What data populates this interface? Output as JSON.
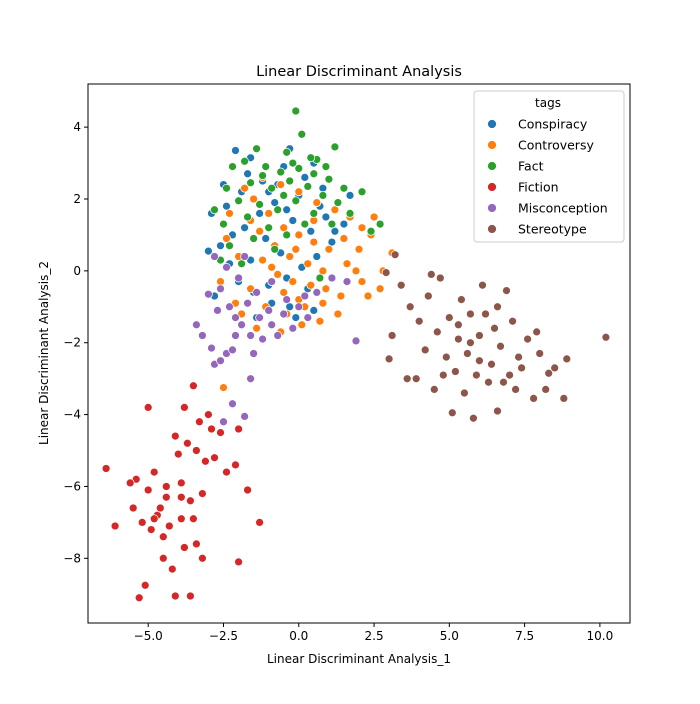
{
  "chart_data": {
    "type": "scatter",
    "title": "Linear Discriminant Analysis",
    "xlabel": "Linear Discriminant Analysis_1",
    "ylabel": "Linear Discriminant Analysis_2",
    "xlim": [
      -7.0,
      11.0
    ],
    "ylim": [
      -9.8,
      5.2
    ],
    "xticks": [
      -5.0,
      -2.5,
      0.0,
      2.5,
      5.0,
      7.5,
      10.0
    ],
    "xtick_labels": [
      "−5.0",
      "−2.5",
      "0.0",
      "2.5",
      "5.0",
      "7.5",
      "10.0"
    ],
    "yticks": [
      -8,
      -6,
      -4,
      -2,
      0,
      2,
      4
    ],
    "ytick_labels": [
      "−8",
      "−6",
      "−4",
      "−2",
      "0",
      "2",
      "4"
    ],
    "grid": false,
    "legend": {
      "title": "tags",
      "position": "top-right"
    },
    "series": [
      {
        "name": "Conspiracy",
        "color": "#1f77b4",
        "points": [
          [
            -2.1,
            3.35
          ],
          [
            -1.6,
            3.15
          ],
          [
            -0.3,
            3.4
          ],
          [
            0.5,
            3.0
          ],
          [
            -2.9,
            1.6
          ],
          [
            -3.0,
            0.55
          ],
          [
            -2.4,
            1.8
          ],
          [
            -1.9,
            2.2
          ],
          [
            -1.2,
            2.5
          ],
          [
            -0.5,
            2.9
          ],
          [
            0.2,
            2.6
          ],
          [
            0.8,
            2.3
          ],
          [
            1.3,
            1.9
          ],
          [
            1.7,
            2.1
          ],
          [
            1.5,
            1.3
          ],
          [
            1.1,
            0.8
          ],
          [
            0.6,
            0.4
          ],
          [
            0.1,
            0.1
          ],
          [
            -0.4,
            -0.2
          ],
          [
            -1.0,
            -0.4
          ],
          [
            -1.5,
            -0.6
          ],
          [
            -2.0,
            -0.3
          ],
          [
            -2.3,
            0.2
          ],
          [
            -2.6,
            0.7
          ],
          [
            -1.8,
            1.2
          ],
          [
            -1.3,
            1.6
          ],
          [
            -0.8,
            1.9
          ],
          [
            -0.2,
            1.4
          ],
          [
            0.4,
            1.1
          ],
          [
            0.9,
            1.5
          ],
          [
            -1.1,
            0.9
          ],
          [
            -0.6,
            0.5
          ],
          [
            -1.6,
            0.3
          ],
          [
            -2.2,
            1.0
          ],
          [
            -0.9,
            -0.9
          ],
          [
            -1.4,
            -1.3
          ],
          [
            -0.3,
            -1.0
          ],
          [
            0.3,
            -0.5
          ],
          [
            -1.9,
            -1.5
          ],
          [
            -0.7,
            2.4
          ],
          [
            0.0,
            2.1
          ],
          [
            0.7,
            1.8
          ],
          [
            -1.7,
            2.7
          ],
          [
            -2.5,
            2.4
          ],
          [
            1.2,
            1.1
          ],
          [
            -0.1,
            -1.3
          ],
          [
            0.5,
            -1.1
          ],
          [
            -2.8,
            -0.7
          ],
          [
            -1.0,
            2.2
          ],
          [
            -0.4,
            1.7
          ]
        ]
      },
      {
        "name": "Controversy",
        "color": "#ff7f0e",
        "points": [
          [
            -1.5,
            2.0
          ],
          [
            -1.0,
            1.6
          ],
          [
            -0.5,
            1.2
          ],
          [
            0.0,
            1.0
          ],
          [
            0.5,
            0.8
          ],
          [
            1.0,
            0.6
          ],
          [
            -0.8,
            0.7
          ],
          [
            -0.3,
            0.4
          ],
          [
            0.3,
            0.2
          ],
          [
            0.8,
            0.0
          ],
          [
            -1.2,
            0.3
          ],
          [
            -0.7,
            -0.1
          ],
          [
            -0.2,
            -0.3
          ],
          [
            0.4,
            -0.4
          ],
          [
            1.1,
            -0.2
          ],
          [
            1.6,
            0.2
          ],
          [
            2.0,
            0.6
          ],
          [
            2.4,
            1.0
          ],
          [
            2.1,
            -0.3
          ],
          [
            1.4,
            -0.7
          ],
          [
            0.8,
            -0.9
          ],
          [
            0.2,
            -1.0
          ],
          [
            -0.4,
            -1.2
          ],
          [
            -1.1,
            -1.0
          ],
          [
            -1.6,
            -0.5
          ],
          [
            -2.0,
            0.4
          ],
          [
            -2.4,
            0.9
          ],
          [
            -2.1,
            -0.9
          ],
          [
            -1.4,
            -1.6
          ],
          [
            -0.6,
            -1.7
          ],
          [
            0.1,
            -1.5
          ],
          [
            0.7,
            -1.4
          ],
          [
            1.3,
            -1.2
          ],
          [
            2.3,
            -0.7
          ],
          [
            2.8,
            0.0
          ],
          [
            3.1,
            0.5
          ],
          [
            2.5,
            1.5
          ],
          [
            2.1,
            1.2
          ],
          [
            1.7,
            1.5
          ],
          [
            1.2,
            1.7
          ],
          [
            0.6,
            1.9
          ],
          [
            0.0,
            2.2
          ],
          [
            -0.6,
            2.4
          ],
          [
            -1.2,
            2.6
          ],
          [
            -1.8,
            2.3
          ],
          [
            -2.3,
            1.6
          ],
          [
            -2.6,
            -0.3
          ],
          [
            -2.5,
            -3.25
          ],
          [
            -0.9,
            0.1
          ],
          [
            -0.1,
            0.6
          ],
          [
            0.5,
            1.4
          ],
          [
            1.5,
            0.9
          ],
          [
            -1.3,
            1.1
          ],
          [
            0.9,
            -0.5
          ],
          [
            -0.5,
            -0.6
          ],
          [
            1.9,
            0.0
          ],
          [
            2.7,
            -0.5
          ],
          [
            -1.9,
            -1.2
          ],
          [
            0.0,
            -0.8
          ],
          [
            -1.6,
            1.4
          ]
        ]
      },
      {
        "name": "Fact",
        "color": "#2ca02c",
        "points": [
          [
            -0.1,
            4.45
          ],
          [
            0.1,
            3.8
          ],
          [
            -0.4,
            3.3
          ],
          [
            0.6,
            3.1
          ],
          [
            -1.4,
            3.4
          ],
          [
            1.2,
            3.45
          ],
          [
            -2.2,
            2.9
          ],
          [
            -1.8,
            3.05
          ],
          [
            -1.1,
            2.9
          ],
          [
            -0.6,
            2.75
          ],
          [
            0.0,
            2.85
          ],
          [
            0.5,
            2.7
          ],
          [
            1.0,
            2.55
          ],
          [
            1.5,
            2.3
          ],
          [
            2.1,
            2.2
          ],
          [
            -2.4,
            2.3
          ],
          [
            -1.6,
            2.45
          ],
          [
            -0.9,
            2.3
          ],
          [
            -0.3,
            2.5
          ],
          [
            0.3,
            2.35
          ],
          [
            0.8,
            2.1
          ],
          [
            1.3,
            1.9
          ],
          [
            -2.0,
            1.95
          ],
          [
            -1.3,
            1.85
          ],
          [
            -0.7,
            1.7
          ],
          [
            -0.1,
            1.95
          ],
          [
            0.5,
            1.6
          ],
          [
            1.1,
            1.3
          ],
          [
            -2.5,
            1.3
          ],
          [
            -1.7,
            1.5
          ],
          [
            -1.0,
            1.2
          ],
          [
            -0.4,
            1.0
          ],
          [
            0.2,
            1.3
          ],
          [
            -2.3,
            0.7
          ],
          [
            -1.5,
            0.9
          ],
          [
            -0.8,
            0.6
          ],
          [
            -2.6,
            0.3
          ],
          [
            -0.2,
            3.0
          ],
          [
            0.9,
            2.9
          ],
          [
            -1.2,
            2.65
          ],
          [
            1.7,
            1.6
          ],
          [
            2.4,
            1.1
          ],
          [
            2.7,
            1.3
          ],
          [
            -0.5,
            2.1
          ],
          [
            0.4,
            3.15
          ],
          [
            -2.8,
            1.7
          ],
          [
            -1.9,
            0.2
          ],
          [
            0.7,
            -0.2
          ]
        ]
      },
      {
        "name": "Fiction",
        "color": "#d62728",
        "points": [
          [
            -6.4,
            -5.5
          ],
          [
            -6.1,
            -7.1
          ],
          [
            -5.5,
            -6.6
          ],
          [
            -5.4,
            -5.8
          ],
          [
            -5.3,
            -9.1
          ],
          [
            -5.1,
            -8.75
          ],
          [
            -5.0,
            -3.8
          ],
          [
            -5.0,
            -6.1
          ],
          [
            -4.9,
            -7.2
          ],
          [
            -4.8,
            -5.6
          ],
          [
            -4.7,
            -6.8
          ],
          [
            -4.6,
            -6.6
          ],
          [
            -4.5,
            -8.0
          ],
          [
            -4.4,
            -6.0
          ],
          [
            -4.3,
            -7.1
          ],
          [
            -4.2,
            -8.3
          ],
          [
            -4.1,
            -4.6
          ],
          [
            -4.0,
            -5.1
          ],
          [
            -3.9,
            -5.9
          ],
          [
            -3.9,
            -6.9
          ],
          [
            -3.8,
            -3.8
          ],
          [
            -3.8,
            -7.7
          ],
          [
            -3.7,
            -4.8
          ],
          [
            -3.6,
            -6.4
          ],
          [
            -3.5,
            -6.9
          ],
          [
            -3.4,
            -7.6
          ],
          [
            -3.4,
            -5.0
          ],
          [
            -3.3,
            -4.2
          ],
          [
            -3.2,
            -6.2
          ],
          [
            -3.2,
            -8.0
          ],
          [
            -3.0,
            -4.0
          ],
          [
            -2.8,
            -5.2
          ],
          [
            -2.6,
            -4.5
          ],
          [
            -2.4,
            -5.6
          ],
          [
            -2.1,
            -5.4
          ],
          [
            -2.0,
            -4.4
          ],
          [
            -1.7,
            -6.1
          ],
          [
            -2.0,
            -8.1
          ],
          [
            -1.3,
            -7.0
          ],
          [
            -3.5,
            -3.2
          ],
          [
            -4.1,
            -9.05
          ],
          [
            -3.6,
            -9.05
          ],
          [
            -5.2,
            -7.0
          ],
          [
            -4.4,
            -6.3
          ],
          [
            -5.6,
            -5.9
          ],
          [
            -3.9,
            -6.3
          ],
          [
            -4.8,
            -6.9
          ],
          [
            -2.9,
            -4.4
          ],
          [
            -3.1,
            -5.3
          ],
          [
            -4.5,
            -7.4
          ]
        ]
      },
      {
        "name": "Misconception",
        "color": "#9467bd",
        "points": [
          [
            -2.9,
            -2.15
          ],
          [
            -2.8,
            -2.6
          ],
          [
            -2.6,
            -2.5
          ],
          [
            -2.4,
            -2.3
          ],
          [
            -2.2,
            -2.2
          ],
          [
            -2.1,
            -1.8
          ],
          [
            -1.9,
            -1.5
          ],
          [
            -1.6,
            -1.8
          ],
          [
            -1.3,
            -1.3
          ],
          [
            -1.2,
            -1.9
          ],
          [
            -0.9,
            -1.5
          ],
          [
            -0.7,
            -1.8
          ],
          [
            -0.5,
            -1.2
          ],
          [
            -0.2,
            -1.6
          ],
          [
            0.0,
            -1.0
          ],
          [
            0.2,
            -0.7
          ],
          [
            0.6,
            -0.6
          ],
          [
            1.1,
            -0.2
          ],
          [
            1.6,
            -0.3
          ],
          [
            -2.0,
            -0.2
          ],
          [
            -1.8,
            0.4
          ],
          [
            -2.4,
            0.1
          ],
          [
            -2.6,
            -0.5
          ],
          [
            -2.3,
            -1.0
          ],
          [
            -1.4,
            -0.6
          ],
          [
            -0.9,
            -0.3
          ],
          [
            -2.7,
            -1.1
          ],
          [
            -3.0,
            -0.65
          ],
          [
            -1.6,
            -3.0
          ],
          [
            -1.5,
            -2.3
          ],
          [
            -3.4,
            -1.5
          ],
          [
            -3.2,
            -1.8
          ],
          [
            -2.5,
            -4.2
          ],
          [
            -1.8,
            -4.05
          ],
          [
            -2.2,
            -3.7
          ],
          [
            1.9,
            -1.95
          ],
          [
            0.3,
            -1.3
          ],
          [
            -0.4,
            -0.8
          ],
          [
            -1.0,
            -1.1
          ],
          [
            -2.1,
            -1.3
          ],
          [
            -1.7,
            -0.9
          ],
          [
            -2.8,
            0.4
          ]
        ]
      },
      {
        "name": "Stereotype",
        "color": "#8c564b",
        "points": [
          [
            10.2,
            -1.85
          ],
          [
            8.9,
            -2.45
          ],
          [
            8.8,
            -3.55
          ],
          [
            8.3,
            -2.85
          ],
          [
            8.2,
            -3.3
          ],
          [
            8.0,
            -2.3
          ],
          [
            7.8,
            -3.55
          ],
          [
            7.6,
            -1.9
          ],
          [
            7.3,
            -2.4
          ],
          [
            7.1,
            -1.4
          ],
          [
            7.0,
            -2.9
          ],
          [
            6.9,
            -0.55
          ],
          [
            6.8,
            -3.1
          ],
          [
            6.6,
            -3.9
          ],
          [
            6.5,
            -1.6
          ],
          [
            6.4,
            -2.6
          ],
          [
            6.3,
            -3.1
          ],
          [
            6.1,
            -0.4
          ],
          [
            6.0,
            -1.8
          ],
          [
            5.9,
            -2.9
          ],
          [
            5.8,
            -4.1
          ],
          [
            5.7,
            -1.2
          ],
          [
            5.6,
            -2.3
          ],
          [
            5.5,
            -3.4
          ],
          [
            5.4,
            -0.8
          ],
          [
            5.3,
            -1.9
          ],
          [
            5.2,
            -2.8
          ],
          [
            5.1,
            -3.95
          ],
          [
            5.0,
            -1.3
          ],
          [
            4.9,
            -2.4
          ],
          [
            4.7,
            -0.2
          ],
          [
            4.6,
            -1.7
          ],
          [
            4.5,
            -3.3
          ],
          [
            4.3,
            -0.7
          ],
          [
            4.2,
            -2.2
          ],
          [
            4.0,
            -1.4
          ],
          [
            3.9,
            -3.0
          ],
          [
            3.7,
            -1.0
          ],
          [
            3.4,
            -0.4
          ],
          [
            3.1,
            -1.8
          ],
          [
            3.0,
            -2.45
          ],
          [
            2.9,
            -0.05
          ],
          [
            3.2,
            0.45
          ],
          [
            3.6,
            -3.0
          ],
          [
            4.4,
            -0.1
          ],
          [
            5.7,
            -2.0
          ],
          [
            6.2,
            -1.2
          ],
          [
            6.7,
            -2.1
          ],
          [
            7.4,
            -2.7
          ],
          [
            7.9,
            -1.7
          ],
          [
            8.5,
            -2.7
          ],
          [
            6.0,
            -2.5
          ],
          [
            5.3,
            -1.5
          ],
          [
            4.8,
            -2.9
          ],
          [
            6.6,
            -1.0
          ],
          [
            7.2,
            -3.3
          ]
        ]
      }
    ]
  }
}
